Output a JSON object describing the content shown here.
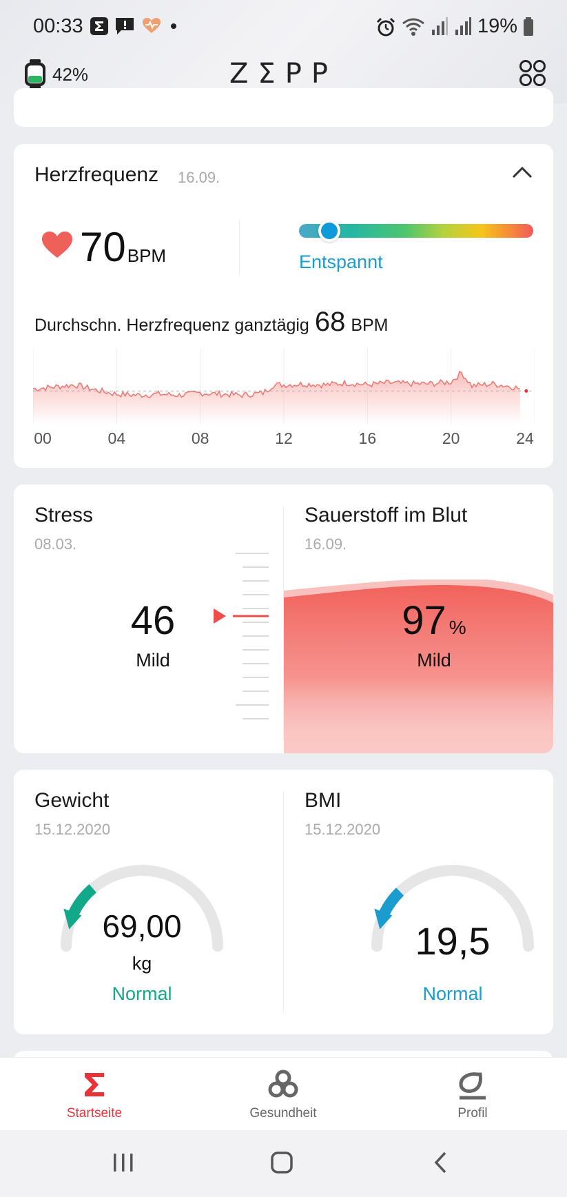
{
  "status_bar": {
    "time": "00:33",
    "battery": "19%",
    "icons": [
      "zepp-sigma-icon",
      "message-icon",
      "heart-health-icon",
      "dot-icon",
      "alarm-icon",
      "wifi-icon",
      "signal-icon",
      "signal-icon",
      "battery-icon"
    ]
  },
  "header": {
    "watch_battery": "42%",
    "brand": "ZΣPP",
    "watch_icon": "watch-icon",
    "grid_icon": "grid-icon"
  },
  "heart_rate": {
    "title": "Herzfrequenz",
    "date": "16.09.",
    "value": "70",
    "unit": "BPM",
    "zone_label": "Entspannt",
    "avg_label": "Durchschn. Herzfrequenz ganztägig",
    "avg_value": "68",
    "avg_unit": "BPM",
    "ticks": [
      "00",
      "04",
      "08",
      "12",
      "16",
      "20",
      "24"
    ],
    "accent": "#f0605a"
  },
  "chart_data": {
    "type": "area",
    "x_label": "",
    "y_label": "",
    "x_range": [
      0,
      24
    ],
    "y_range": [
      40,
      110
    ],
    "reference_line": 68,
    "x": [
      0,
      1,
      2,
      3,
      4,
      5,
      6,
      7,
      8,
      9,
      10,
      11,
      11.5,
      12,
      13,
      14,
      15,
      16,
      17,
      18,
      19,
      20,
      20.5,
      21,
      22,
      23,
      23.3
    ],
    "values": [
      70,
      72,
      74,
      69,
      65,
      64,
      65,
      64,
      66,
      65,
      64,
      66,
      74,
      74,
      75,
      74,
      76,
      74,
      76,
      75,
      75,
      77,
      86,
      73,
      75,
      72,
      70
    ]
  },
  "stress": {
    "title": "Stress",
    "date": "08.03.",
    "value": "46",
    "label": "Mild"
  },
  "oxygen": {
    "title": "Sauerstoff im Blut",
    "date": "16.09.",
    "value": "97",
    "unit": "%",
    "label": "Mild"
  },
  "weight": {
    "title": "Gewicht",
    "date": "15.12.2020",
    "value": "69,00",
    "unit": "kg",
    "status": "Normal",
    "accent": "#12a88a",
    "level": 0.22
  },
  "bmi": {
    "title": "BMI",
    "date": "15.12.2020",
    "value": "19,5",
    "status": "Normal",
    "accent": "#1a9ccf",
    "level": 0.2
  },
  "nav": {
    "home": "Startseite",
    "health": "Gesundheit",
    "profile": "Profil",
    "active_color": "#e8333a"
  }
}
